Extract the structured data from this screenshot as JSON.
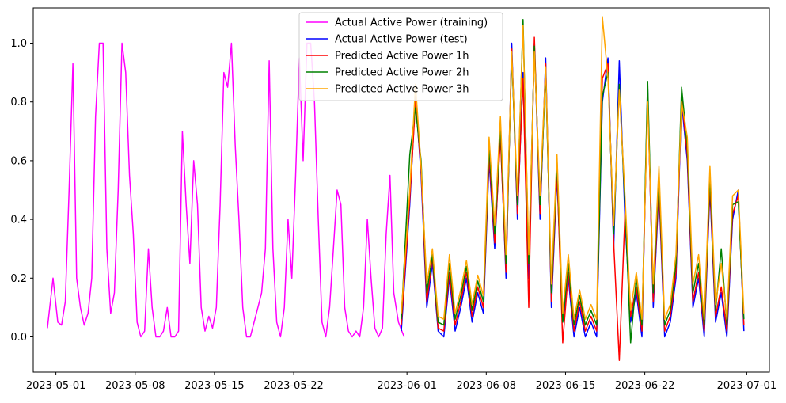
{
  "chart_data": {
    "type": "line",
    "title": "",
    "xlabel": "",
    "ylabel": "",
    "x_type": "date",
    "xlim": [
      "2023-04-29",
      "2023-07-03"
    ],
    "ylim": [
      -0.12,
      1.12
    ],
    "grid": false,
    "legend_position": "top-center",
    "x_ticks": [
      "2023-05-01",
      "2023-05-08",
      "2023-05-15",
      "2023-05-22",
      "2023-06-01",
      "2023-06-08",
      "2023-06-15",
      "2023-06-22",
      "2023-07-01"
    ],
    "y_ticks": [
      "0.0",
      "0.2",
      "0.4",
      "0.6",
      "0.8",
      "1.0"
    ],
    "series": [
      {
        "name": "Actual Active Power (training)",
        "color": "#ff00ff",
        "x": [
          "2023-04-30",
          "2023-04-30",
          "2023-05-01",
          "2023-05-01",
          "2023-05-01",
          "2023-05-02",
          "2023-05-02",
          "2023-05-02",
          "2023-05-03",
          "2023-05-03",
          "2023-05-03",
          "2023-05-04",
          "2023-05-04",
          "2023-05-04",
          "2023-05-05",
          "2023-05-05",
          "2023-05-05",
          "2023-05-06",
          "2023-05-06",
          "2023-05-06",
          "2023-05-07",
          "2023-05-07",
          "2023-05-07",
          "2023-05-08",
          "2023-05-08",
          "2023-05-08",
          "2023-05-09",
          "2023-05-09",
          "2023-05-09",
          "2023-05-10",
          "2023-05-10",
          "2023-05-10",
          "2023-05-11",
          "2023-05-11",
          "2023-05-11",
          "2023-05-12",
          "2023-05-12",
          "2023-05-12",
          "2023-05-13",
          "2023-05-13",
          "2023-05-13",
          "2023-05-14",
          "2023-05-14",
          "2023-05-14",
          "2023-05-15",
          "2023-05-15",
          "2023-05-15",
          "2023-05-16",
          "2023-05-16",
          "2023-05-16",
          "2023-05-17",
          "2023-05-17",
          "2023-05-17",
          "2023-05-18",
          "2023-05-18",
          "2023-05-18",
          "2023-05-19",
          "2023-05-19",
          "2023-05-19",
          "2023-05-20",
          "2023-05-20",
          "2023-05-20",
          "2023-05-21",
          "2023-05-21",
          "2023-05-21",
          "2023-05-22",
          "2023-05-22",
          "2023-05-22",
          "2023-05-23",
          "2023-05-23",
          "2023-05-23",
          "2023-05-24",
          "2023-05-24",
          "2023-05-24",
          "2023-05-25",
          "2023-05-25",
          "2023-05-25",
          "2023-05-26",
          "2023-05-26",
          "2023-05-26",
          "2023-05-27",
          "2023-05-27",
          "2023-05-27",
          "2023-05-28",
          "2023-05-28",
          "2023-05-28",
          "2023-05-29",
          "2023-05-29",
          "2023-05-29",
          "2023-05-30",
          "2023-05-30",
          "2023-05-30",
          "2023-05-31",
          "2023-05-31"
        ],
        "y": [
          0.03,
          0.2,
          0.05,
          0.04,
          0.12,
          0.5,
          0.93,
          0.2,
          0.1,
          0.04,
          0.08,
          0.2,
          0.75,
          1.0,
          1.0,
          0.3,
          0.08,
          0.15,
          0.5,
          1.0,
          0.9,
          0.55,
          0.35,
          0.05,
          0.0,
          0.02,
          0.3,
          0.1,
          0.0,
          0.0,
          0.02,
          0.1,
          0.0,
          0.0,
          0.02,
          0.7,
          0.45,
          0.25,
          0.6,
          0.45,
          0.1,
          0.02,
          0.07,
          0.03,
          0.1,
          0.45,
          0.9,
          0.85,
          1.0,
          0.65,
          0.4,
          0.1,
          0.0,
          0.0,
          0.05,
          0.1,
          0.15,
          0.3,
          0.94,
          0.3,
          0.05,
          0.0,
          0.1,
          0.4,
          0.2,
          0.55,
          0.95,
          0.6,
          1.0,
          1.0,
          0.8,
          0.4,
          0.05,
          0.0,
          0.1,
          0.3,
          0.5,
          0.45,
          0.1,
          0.02,
          0.0,
          0.02,
          0.0,
          0.1,
          0.4,
          0.2,
          0.03,
          0.0,
          0.03,
          0.35,
          0.55,
          0.15,
          0.05,
          0.0
        ]
      },
      {
        "name": "Actual Active Power (test)",
        "color": "#0000ff",
        "x": [
          "2023-05-31",
          "2023-06-01",
          "2023-06-01",
          "2023-06-02",
          "2023-06-02",
          "2023-06-03",
          "2023-06-03",
          "2023-06-04",
          "2023-06-04",
          "2023-06-05",
          "2023-06-05",
          "2023-06-06",
          "2023-06-06",
          "2023-06-07",
          "2023-06-07",
          "2023-06-08",
          "2023-06-08",
          "2023-06-09",
          "2023-06-09",
          "2023-06-10",
          "2023-06-10",
          "2023-06-11",
          "2023-06-11",
          "2023-06-12",
          "2023-06-12",
          "2023-06-13",
          "2023-06-13",
          "2023-06-14",
          "2023-06-14",
          "2023-06-15",
          "2023-06-15",
          "2023-06-16",
          "2023-06-16",
          "2023-06-17",
          "2023-06-17",
          "2023-06-18",
          "2023-06-18",
          "2023-06-19",
          "2023-06-19",
          "2023-06-20",
          "2023-06-20",
          "2023-06-21",
          "2023-06-21",
          "2023-06-22",
          "2023-06-22",
          "2023-06-23",
          "2023-06-23",
          "2023-06-24",
          "2023-06-24",
          "2023-06-25",
          "2023-06-25",
          "2023-06-26",
          "2023-06-26",
          "2023-06-27",
          "2023-06-27",
          "2023-06-28",
          "2023-06-28",
          "2023-06-29",
          "2023-06-29",
          "2023-06-30",
          "2023-06-30"
        ],
        "y": [
          0.02,
          0.45,
          0.82,
          0.55,
          0.1,
          0.25,
          0.02,
          0.0,
          0.2,
          0.02,
          0.1,
          0.2,
          0.05,
          0.15,
          0.08,
          0.6,
          0.3,
          0.7,
          0.2,
          1.0,
          0.4,
          0.9,
          0.2,
          1.0,
          0.4,
          0.95,
          0.1,
          0.55,
          0.05,
          0.2,
          0.0,
          0.1,
          0.0,
          0.05,
          0.0,
          0.8,
          0.95,
          0.3,
          0.94,
          0.4,
          0.05,
          0.15,
          0.0,
          0.85,
          0.1,
          0.5,
          0.0,
          0.05,
          0.2,
          0.8,
          0.6,
          0.1,
          0.2,
          0.0,
          0.5,
          0.05,
          0.15,
          0.0,
          0.4,
          0.5,
          0.02
        ]
      },
      {
        "name": "Predicted Active Power 1h",
        "color": "#ff0000",
        "x": [
          "2023-05-31",
          "2023-06-01",
          "2023-06-01",
          "2023-06-02",
          "2023-06-02",
          "2023-06-03",
          "2023-06-03",
          "2023-06-04",
          "2023-06-04",
          "2023-06-05",
          "2023-06-05",
          "2023-06-06",
          "2023-06-06",
          "2023-06-07",
          "2023-06-07",
          "2023-06-08",
          "2023-06-08",
          "2023-06-09",
          "2023-06-09",
          "2023-06-10",
          "2023-06-10",
          "2023-06-11",
          "2023-06-11",
          "2023-06-12",
          "2023-06-12",
          "2023-06-13",
          "2023-06-13",
          "2023-06-14",
          "2023-06-14",
          "2023-06-15",
          "2023-06-15",
          "2023-06-16",
          "2023-06-16",
          "2023-06-17",
          "2023-06-17",
          "2023-06-18",
          "2023-06-18",
          "2023-06-19",
          "2023-06-19",
          "2023-06-20",
          "2023-06-20",
          "2023-06-21",
          "2023-06-21",
          "2023-06-22",
          "2023-06-22",
          "2023-06-23",
          "2023-06-23",
          "2023-06-24",
          "2023-06-24",
          "2023-06-25",
          "2023-06-25",
          "2023-06-26",
          "2023-06-26",
          "2023-06-27",
          "2023-06-27",
          "2023-06-28",
          "2023-06-28",
          "2023-06-29",
          "2023-06-29",
          "2023-06-30",
          "2023-06-30"
        ],
        "y": [
          0.04,
          0.47,
          0.8,
          0.57,
          0.12,
          0.27,
          0.03,
          0.02,
          0.22,
          0.04,
          0.12,
          0.22,
          0.07,
          0.17,
          0.1,
          0.62,
          0.32,
          0.68,
          0.22,
          0.98,
          0.42,
          0.88,
          0.1,
          1.02,
          0.42,
          0.93,
          0.12,
          0.57,
          -0.02,
          0.22,
          0.02,
          0.12,
          0.02,
          0.07,
          0.02,
          0.88,
          0.93,
          0.32,
          -0.08,
          0.42,
          0.07,
          0.17,
          0.02,
          0.83,
          0.12,
          0.52,
          0.02,
          0.07,
          0.22,
          0.82,
          0.62,
          0.12,
          0.22,
          0.02,
          0.52,
          0.07,
          0.17,
          0.02,
          0.42,
          0.48,
          0.04
        ]
      },
      {
        "name": "Predicted Active Power 2h",
        "color": "#008000",
        "x": [
          "2023-05-31",
          "2023-06-01",
          "2023-06-01",
          "2023-06-02",
          "2023-06-02",
          "2023-06-03",
          "2023-06-03",
          "2023-06-04",
          "2023-06-04",
          "2023-06-05",
          "2023-06-05",
          "2023-06-06",
          "2023-06-06",
          "2023-06-07",
          "2023-06-07",
          "2023-06-08",
          "2023-06-08",
          "2023-06-09",
          "2023-06-09",
          "2023-06-10",
          "2023-06-10",
          "2023-06-11",
          "2023-06-11",
          "2023-06-12",
          "2023-06-12",
          "2023-06-13",
          "2023-06-13",
          "2023-06-14",
          "2023-06-14",
          "2023-06-15",
          "2023-06-15",
          "2023-06-16",
          "2023-06-16",
          "2023-06-17",
          "2023-06-17",
          "2023-06-18",
          "2023-06-18",
          "2023-06-19",
          "2023-06-19",
          "2023-06-20",
          "2023-06-20",
          "2023-06-21",
          "2023-06-21",
          "2023-06-22",
          "2023-06-22",
          "2023-06-23",
          "2023-06-23",
          "2023-06-24",
          "2023-06-24",
          "2023-06-25",
          "2023-06-25",
          "2023-06-26",
          "2023-06-26",
          "2023-06-27",
          "2023-06-27",
          "2023-06-28",
          "2023-06-28",
          "2023-06-29",
          "2023-06-29",
          "2023-06-30",
          "2023-06-30"
        ],
        "y": [
          0.06,
          0.62,
          0.78,
          0.6,
          0.15,
          0.28,
          0.05,
          0.04,
          0.25,
          0.06,
          0.14,
          0.24,
          0.09,
          0.19,
          0.12,
          0.65,
          0.35,
          0.72,
          0.25,
          0.96,
          0.45,
          1.08,
          0.25,
          0.99,
          0.45,
          0.9,
          0.15,
          0.6,
          0.05,
          0.25,
          0.04,
          0.14,
          0.04,
          0.09,
          0.04,
          0.82,
          0.9,
          0.35,
          0.86,
          0.45,
          -0.02,
          0.2,
          0.04,
          0.87,
          0.15,
          0.55,
          0.04,
          0.09,
          0.25,
          0.85,
          0.65,
          0.15,
          0.25,
          0.04,
          0.55,
          0.09,
          0.3,
          0.04,
          0.45,
          0.46,
          0.06
        ]
      },
      {
        "name": "Predicted Active Power 3h",
        "color": "#ffa500",
        "x": [
          "2023-05-31",
          "2023-06-01",
          "2023-06-01",
          "2023-06-02",
          "2023-06-02",
          "2023-06-03",
          "2023-06-03",
          "2023-06-04",
          "2023-06-04",
          "2023-06-05",
          "2023-06-05",
          "2023-06-06",
          "2023-06-06",
          "2023-06-07",
          "2023-06-07",
          "2023-06-08",
          "2023-06-08",
          "2023-06-09",
          "2023-06-09",
          "2023-06-10",
          "2023-06-10",
          "2023-06-11",
          "2023-06-11",
          "2023-06-12",
          "2023-06-12",
          "2023-06-13",
          "2023-06-13",
          "2023-06-14",
          "2023-06-14",
          "2023-06-15",
          "2023-06-15",
          "2023-06-16",
          "2023-06-16",
          "2023-06-17",
          "2023-06-17",
          "2023-06-18",
          "2023-06-18",
          "2023-06-19",
          "2023-06-19",
          "2023-06-20",
          "2023-06-20",
          "2023-06-21",
          "2023-06-21",
          "2023-06-22",
          "2023-06-22",
          "2023-06-23",
          "2023-06-23",
          "2023-06-24",
          "2023-06-24",
          "2023-06-25",
          "2023-06-25",
          "2023-06-26",
          "2023-06-26",
          "2023-06-27",
          "2023-06-27",
          "2023-06-28",
          "2023-06-28",
          "2023-06-29",
          "2023-06-29",
          "2023-06-30",
          "2023-06-30"
        ],
        "y": [
          0.08,
          0.5,
          0.86,
          0.58,
          0.18,
          0.3,
          0.07,
          0.06,
          0.28,
          0.08,
          0.16,
          0.26,
          0.11,
          0.21,
          0.14,
          0.68,
          0.38,
          0.75,
          0.28,
          0.97,
          0.48,
          1.06,
          0.28,
          0.97,
          0.48,
          0.92,
          0.18,
          0.62,
          0.08,
          0.28,
          0.06,
          0.16,
          0.06,
          0.11,
          0.06,
          1.09,
          0.88,
          0.38,
          0.84,
          0.48,
          0.09,
          0.22,
          0.06,
          0.8,
          0.18,
          0.58,
          0.06,
          0.11,
          0.28,
          0.8,
          0.68,
          0.18,
          0.28,
          0.06,
          0.58,
          0.11,
          0.25,
          0.06,
          0.48,
          0.5,
          0.08
        ]
      }
    ]
  }
}
